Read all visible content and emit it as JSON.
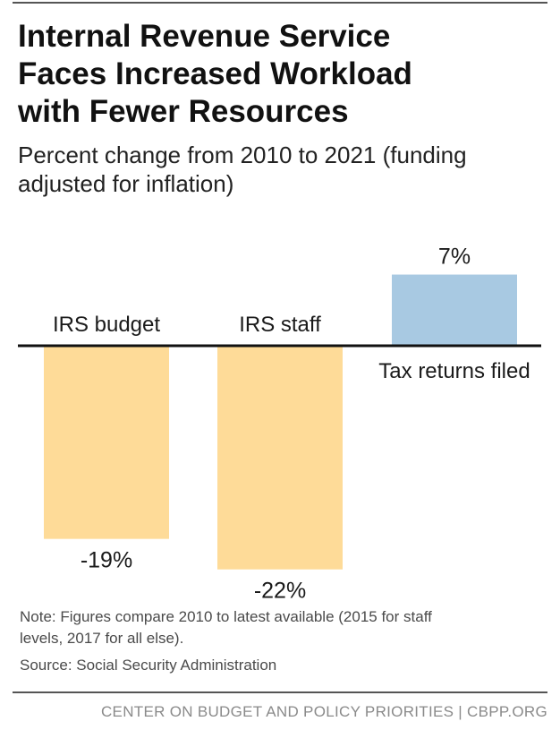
{
  "title_lines": [
    "Internal Revenue Service",
    "Faces Increased Workload",
    "with Fewer Resources"
  ],
  "subtitle_lines": [
    "Percent change from 2010 to 2021 (funding",
    "adjusted for inflation)"
  ],
  "note_lines": [
    "Note: Figures compare 2010 to latest available (2015 for staff",
    "levels, 2017 for all else)."
  ],
  "source": "Source: Social Security Administration",
  "footer": "CENTER ON BUDGET AND POLICY PRIORITIES | CBPP.ORG",
  "chart_data": {
    "type": "bar",
    "categories": [
      "IRS budget",
      "IRS staff",
      "Tax returns filed"
    ],
    "values": [
      -19,
      -22,
      7
    ],
    "value_labels": [
      "-19%",
      "-22%",
      "7%"
    ],
    "ylim": [
      -25,
      10
    ],
    "grid": false,
    "axis_line_at": 0,
    "colors": {
      "negative": "#fedb98",
      "positive": "#a8c9e2",
      "axis": "#111111"
    }
  }
}
